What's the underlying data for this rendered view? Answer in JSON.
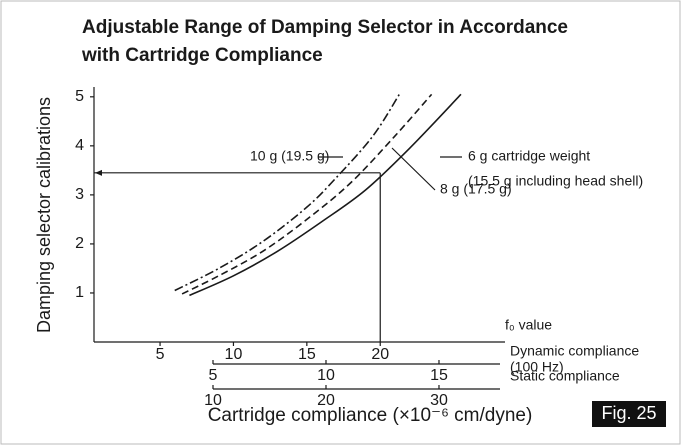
{
  "chart_data": {
    "type": "line",
    "title": [
      "Adjustable Range of Damping Selector in Accordance",
      "with Cartridge Compliance"
    ],
    "y_label": "Damping selector calibrations",
    "x_label": "f₀ value",
    "bottom_label": "Cartridge compliance (×10⁻⁶ cm/dyne)",
    "figure_label": "Fig. 25",
    "xlim": [
      0.5,
      28.5
    ],
    "xticks": [
      5,
      10,
      15,
      20
    ],
    "ylim": [
      0,
      5.2
    ],
    "yticks": [
      1,
      2,
      3,
      4,
      5
    ],
    "reference": {
      "x": 20,
      "y": 3.45
    },
    "secondary_axes": [
      {
        "label": [
          "Dynamic compliance",
          "(100 Hz)"
        ],
        "lim": [
          5,
          17.7
        ],
        "ticks": [
          5,
          10,
          15
        ]
      },
      {
        "label": [
          "Static compliance"
        ],
        "lim": [
          10,
          35.4
        ],
        "ticks": [
          10,
          20,
          30
        ]
      }
    ],
    "series": [
      {
        "name": [
          "6 g cartridge weight",
          "(15.5 g including head shell)"
        ],
        "color": "#1a1a1a",
        "style": "solid",
        "x": [
          7.0,
          10,
          13,
          16,
          19,
          22,
          25.5
        ],
        "values": [
          0.95,
          1.35,
          1.85,
          2.45,
          3.1,
          3.95,
          5.05
        ]
      },
      {
        "name": [
          "8 g (17.5 g)"
        ],
        "color": "#1a1a1a",
        "style": "dashed",
        "x": [
          6.5,
          9,
          12,
          15,
          18,
          21,
          23.5
        ],
        "values": [
          0.98,
          1.35,
          1.85,
          2.5,
          3.25,
          4.2,
          5.05
        ]
      },
      {
        "name": [
          "10 g (19.5 g)"
        ],
        "color": "#1a1a1a",
        "style": "dashdot",
        "x": [
          6.0,
          9,
          12,
          15,
          17,
          19.5,
          21.3
        ],
        "values": [
          1.05,
          1.5,
          2.05,
          2.75,
          3.35,
          4.2,
          5.05
        ]
      }
    ]
  }
}
